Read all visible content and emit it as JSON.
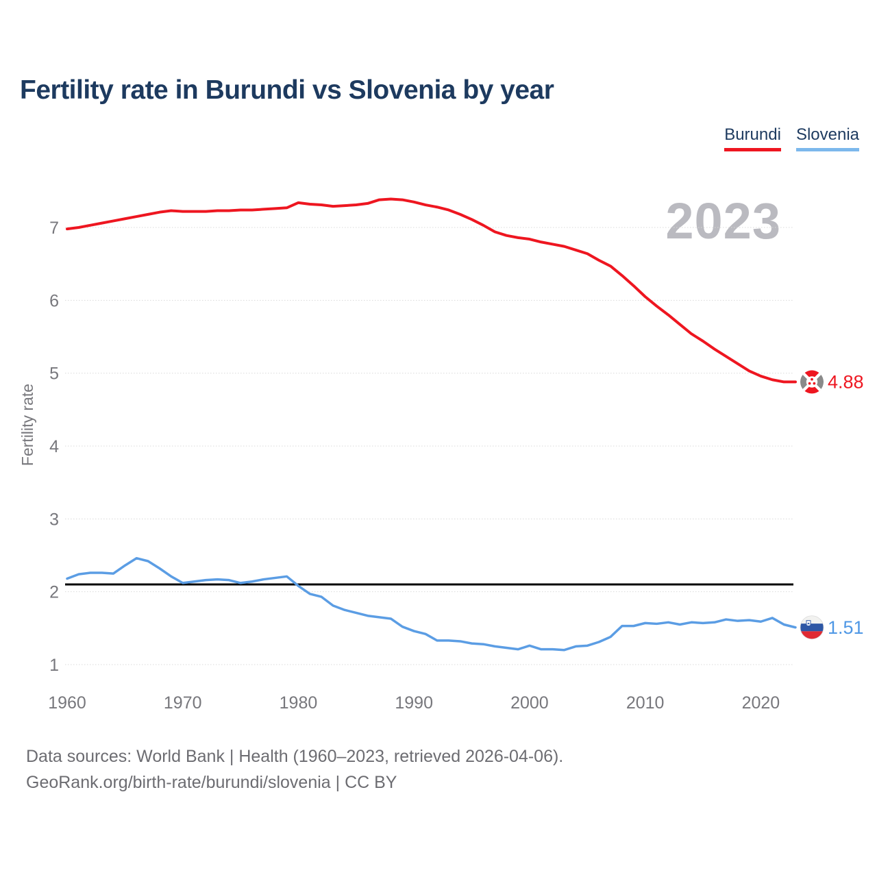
{
  "title": "Fertility rate in Burundi vs Slovenia by year",
  "legend": [
    {
      "label": "Burundi",
      "color": "#ee1620"
    },
    {
      "label": "Slovenia",
      "color": "#7cb8ec"
    }
  ],
  "watermark": "2023",
  "footer": {
    "line1": "Data sources: World Bank | Health (1960–2023, retrieved 2026-04-06).",
    "line2": "GeoRank.org/birth-rate/burundi/slovenia | CC BY"
  },
  "chart_data": {
    "type": "line",
    "title": "Fertility rate in Burundi vs Slovenia by year",
    "xlabel": "",
    "ylabel": "Fertility rate",
    "xlim": [
      1960,
      2023
    ],
    "ylim": [
      0.5,
      7.5
    ],
    "x_ticks": [
      1960,
      1970,
      1980,
      1990,
      2000,
      2010,
      2020
    ],
    "y_ticks": [
      1,
      2,
      3,
      4,
      5,
      6,
      7
    ],
    "grid": "horizontal-dotted",
    "legend_position": "top-right",
    "reference_line": {
      "value": 2.1,
      "color": "#000000"
    },
    "years": [
      1960,
      1961,
      1962,
      1963,
      1964,
      1965,
      1966,
      1967,
      1968,
      1969,
      1970,
      1971,
      1972,
      1973,
      1974,
      1975,
      1976,
      1977,
      1978,
      1979,
      1980,
      1981,
      1982,
      1983,
      1984,
      1985,
      1986,
      1987,
      1988,
      1989,
      1990,
      1991,
      1992,
      1993,
      1994,
      1995,
      1996,
      1997,
      1998,
      1999,
      2000,
      2001,
      2002,
      2003,
      2004,
      2005,
      2006,
      2007,
      2008,
      2009,
      2010,
      2011,
      2012,
      2013,
      2014,
      2015,
      2016,
      2017,
      2018,
      2019,
      2020,
      2021,
      2022,
      2023
    ],
    "series": [
      {
        "name": "Burundi",
        "color": "#ee1620",
        "stroke_width": 4,
        "end_label": "4.88",
        "flag_icon": "burundi-flag-icon",
        "values": [
          6.98,
          7.0,
          7.03,
          7.06,
          7.09,
          7.12,
          7.15,
          7.18,
          7.21,
          7.23,
          7.22,
          7.22,
          7.22,
          7.23,
          7.23,
          7.24,
          7.24,
          7.25,
          7.26,
          7.27,
          7.34,
          7.32,
          7.31,
          7.29,
          7.3,
          7.31,
          7.33,
          7.38,
          7.39,
          7.38,
          7.35,
          7.31,
          7.28,
          7.24,
          7.18,
          7.11,
          7.03,
          6.94,
          6.89,
          6.86,
          6.84,
          6.8,
          6.77,
          6.74,
          6.69,
          6.64,
          6.55,
          6.47,
          6.34,
          6.2,
          6.05,
          5.92,
          5.8,
          5.67,
          5.54,
          5.44,
          5.33,
          5.23,
          5.13,
          5.03,
          4.96,
          4.91,
          4.88,
          4.88
        ]
      },
      {
        "name": "Slovenia",
        "color": "#5b9de4",
        "stroke_width": 3.5,
        "end_label": "1.51",
        "flag_icon": "slovenia-flag-icon",
        "values": [
          2.18,
          2.24,
          2.26,
          2.26,
          2.25,
          2.36,
          2.46,
          2.42,
          2.32,
          2.21,
          2.12,
          2.14,
          2.16,
          2.17,
          2.16,
          2.12,
          2.14,
          2.17,
          2.19,
          2.21,
          2.08,
          1.97,
          1.93,
          1.81,
          1.75,
          1.71,
          1.67,
          1.65,
          1.63,
          1.52,
          1.46,
          1.42,
          1.33,
          1.33,
          1.32,
          1.29,
          1.28,
          1.25,
          1.23,
          1.21,
          1.26,
          1.21,
          1.21,
          1.2,
          1.25,
          1.26,
          1.31,
          1.38,
          1.53,
          1.53,
          1.57,
          1.56,
          1.58,
          1.55,
          1.58,
          1.57,
          1.58,
          1.62,
          1.6,
          1.61,
          1.59,
          1.64,
          1.55,
          1.51
        ]
      }
    ]
  }
}
